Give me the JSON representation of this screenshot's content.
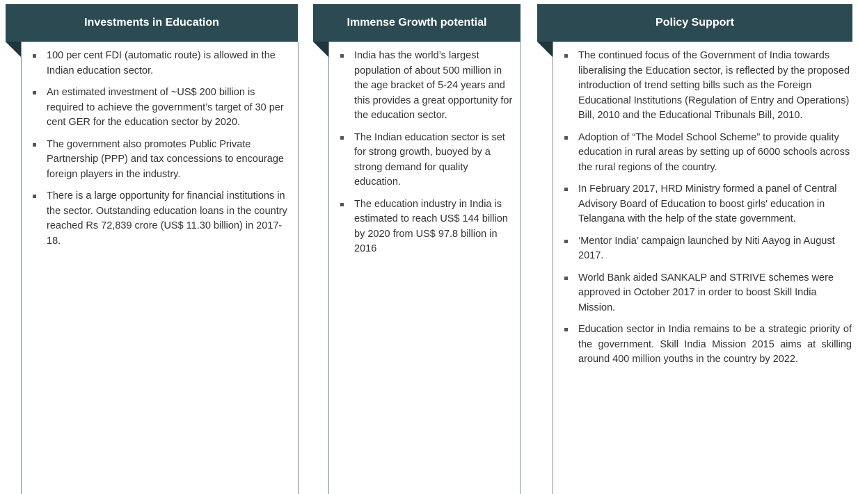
{
  "columns": [
    {
      "title": "Investments in Education",
      "items": [
        "100 per cent FDI (automatic route) is allowed in the Indian education sector.",
        "An estimated investment of ~US$ 200 billion is required to achieve the government’s target of 30 per cent GER for the education sector by 2020.",
        "The government also promotes Public Private Partnership (PPP) and tax concessions to encourage foreign players in the industry.",
        "There is a large opportunity for financial institutions in the sector. Outstanding education loans in the country reached Rs 72,839 crore (US$ 11.30 billion) in 2017-18."
      ]
    },
    {
      "title": "Immense Growth potential",
      "items": [
        "India has the world’s largest population of about 500 million in the age bracket of 5-24 years and this provides a great opportunity for the education sector.",
        "The Indian education sector is set for strong growth, buoyed by a strong demand for quality education.",
        "The education industry in India is estimated to reach US$ 144 billion by 2020 from US$ 97.8 billion in 2016"
      ]
    },
    {
      "title": "Policy Support",
      "items": [
        "The continued focus of the Government of India towards liberalising the Education sector, is reflected by the proposed introduction of trend setting bills such as the Foreign Educational Institutions (Regulation of Entry and Operations) Bill, 2010 and the Educational Tribunals Bill, 2010.",
        "Adoption of “The Model School Scheme” to provide quality education in rural areas by setting up of 6000 schools across the rural regions of the country.",
        "In February 2017, HRD Ministry formed a panel of Central Advisory Board of Education to boost girls' education in Telangana with the help of the state government.",
        "‘Mentor India’ campaign launched by Niti Aayog in August 2017.",
        "World Bank aided SANKALP and STRIVE schemes were approved in October 2017 in order to boost Skill India Mission.",
        "Education sector in India remains to be a strategic priority of the government. Skill India Mission 2015 aims at skilling around 400 million youths in the country by 2022."
      ]
    }
  ]
}
